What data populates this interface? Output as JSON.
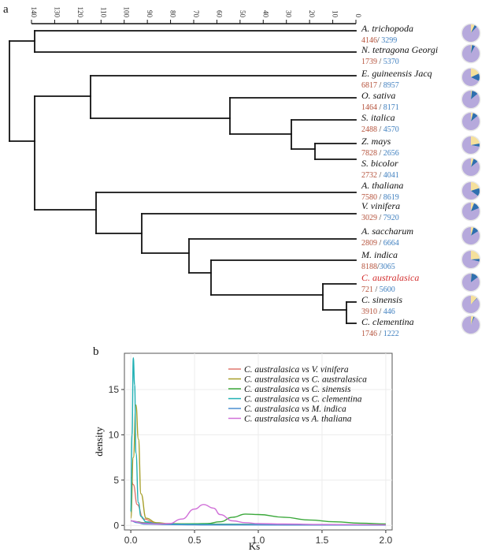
{
  "panel_a": {
    "label": "a",
    "scale_ticks": [
      "140",
      "130",
      "120",
      "110",
      "100",
      "90",
      "80",
      "70",
      "60",
      "50",
      "40",
      "30",
      "20",
      "10",
      "0"
    ],
    "taxa": [
      {
        "name": "A. trichopoda",
        "a": "4146",
        "sep": "/ ",
        "b": "3299",
        "pie": [
          0.07,
          0.05,
          0.88
        ]
      },
      {
        "name": "N. tetragona Georgi",
        "a": "1739",
        "sep": " / ",
        "b": "5370",
        "pie": [
          0.02,
          0.06,
          0.92
        ]
      },
      {
        "name": "E. guineensis Jacq",
        "a": "6817",
        "sep": " / ",
        "b": "8957",
        "pie": [
          0.18,
          0.14,
          0.68
        ]
      },
      {
        "name": "O. sativa",
        "a": "1464",
        "sep": " / ",
        "b": "8171",
        "pie": [
          0.02,
          0.12,
          0.86
        ]
      },
      {
        "name": "S. italica",
        "a": "2488",
        "sep": " / ",
        "b": "4570",
        "pie": [
          0.04,
          0.1,
          0.86
        ]
      },
      {
        "name": "Z. mays",
        "a": "7828",
        "sep": " / ",
        "b": "2656",
        "pie": [
          0.22,
          0.06,
          0.72
        ]
      },
      {
        "name": "S. bicolor",
        "a": "2732",
        "sep": " / ",
        "b": "4041",
        "pie": [
          0.05,
          0.09,
          0.86
        ]
      },
      {
        "name": "A. thaliana",
        "a": "7580",
        "sep": " / ",
        "b": "8619",
        "pie": [
          0.2,
          0.15,
          0.65
        ]
      },
      {
        "name": "V. vinifera",
        "a": "3029",
        "sep": " / ",
        "b": "7920",
        "pie": [
          0.06,
          0.13,
          0.81
        ]
      },
      {
        "name": "A. saccharum",
        "a": "2809",
        "sep": " / ",
        "b": "6664",
        "pie": [
          0.05,
          0.11,
          0.84
        ]
      },
      {
        "name": "M. indica",
        "a": "8188",
        "sep": "/",
        "b": "3065",
        "pie": [
          0.24,
          0.05,
          0.71
        ]
      },
      {
        "name": "C. australasica",
        "a": "721",
        "sep": " / ",
        "b": "5600",
        "pie": [
          0.01,
          0.14,
          0.85
        ],
        "highlight": true
      },
      {
        "name": "C. sinensis",
        "a": "3910",
        "sep": " / ",
        "b": "446",
        "pie": [
          0.12,
          0.01,
          0.87
        ]
      },
      {
        "name": "C. clementina",
        "a": "1746",
        "sep": " / ",
        "b": "1222",
        "pie": [
          0.05,
          0.02,
          0.93
        ]
      }
    ]
  },
  "panel_b": {
    "label": "b",
    "chart_data": {
      "type": "line",
      "title": "",
      "xlabel": "Ks",
      "ylabel": "density",
      "xlim": [
        -0.05,
        2.05
      ],
      "ylim": [
        -0.5,
        19
      ],
      "xticks": [
        "0.0",
        "0.5",
        "1.0",
        "1.5",
        "2.0"
      ],
      "yticks": [
        "0",
        "5",
        "10",
        "15"
      ],
      "series": [
        {
          "name": "C. australasica vs V. vinifera",
          "color": "#e0776f",
          "x": [
            0.0,
            0.02,
            0.05,
            0.1,
            0.2,
            0.3,
            0.5,
            0.8,
            1.0,
            1.5,
            2.0
          ],
          "y": [
            5.3,
            4.5,
            2.3,
            0.7,
            0.25,
            0.15,
            0.1,
            0.1,
            0.08,
            0.06,
            0.04
          ]
        },
        {
          "name": "C. australasica vs C. australasica",
          "color": "#a79f2a",
          "x": [
            0.0,
            0.02,
            0.04,
            0.06,
            0.08,
            0.12,
            0.2,
            0.3,
            0.5,
            1.0,
            1.5,
            2.0
          ],
          "y": [
            0.8,
            7.5,
            13.3,
            9.5,
            3.5,
            0.8,
            0.3,
            0.2,
            0.15,
            0.12,
            0.08,
            0.05
          ]
        },
        {
          "name": "C. australasica vs C. sinensis",
          "color": "#3aa83a",
          "x": [
            0.0,
            0.05,
            0.1,
            0.2,
            0.4,
            0.6,
            0.7,
            0.8,
            0.9,
            1.0,
            1.2,
            1.4,
            1.6,
            1.8,
            2.0
          ],
          "y": [
            0.5,
            0.4,
            0.3,
            0.2,
            0.15,
            0.2,
            0.4,
            0.9,
            1.25,
            1.2,
            0.9,
            0.6,
            0.4,
            0.25,
            0.15
          ]
        },
        {
          "name": "C. australasica vs C. clementina",
          "color": "#21b0b4",
          "x": [
            0.0,
            0.01,
            0.02,
            0.03,
            0.04,
            0.06,
            0.08,
            0.12,
            0.2,
            0.3,
            0.5,
            1.0,
            1.5,
            2.0
          ],
          "y": [
            1.5,
            10.0,
            18.5,
            15.5,
            8.0,
            2.5,
            1.0,
            0.4,
            0.2,
            0.15,
            0.12,
            0.1,
            0.08,
            0.05
          ]
        },
        {
          "name": "C. australasica vs M. indica",
          "color": "#4a8fd0",
          "x": [
            0.0,
            0.05,
            0.1,
            0.3,
            0.5,
            0.8,
            1.0,
            1.5,
            2.0
          ],
          "y": [
            0.5,
            0.3,
            0.15,
            0.08,
            0.06,
            0.05,
            0.05,
            0.04,
            0.03
          ]
        },
        {
          "name": "C. australasica vs A. thaliana",
          "color": "#d070d8",
          "x": [
            0.0,
            0.1,
            0.2,
            0.3,
            0.4,
            0.5,
            0.57,
            0.65,
            0.7,
            0.8,
            0.9,
            1.0,
            1.2,
            1.5,
            2.0
          ],
          "y": [
            0.5,
            0.25,
            0.15,
            0.2,
            0.7,
            1.8,
            2.3,
            1.9,
            1.2,
            0.5,
            0.3,
            0.2,
            0.15,
            0.1,
            0.06
          ]
        }
      ],
      "legend": "top-right"
    }
  },
  "colors": {
    "pie_slice_1": "#f5e09b",
    "pie_slice_2": "#2f6faf",
    "pie_slice_3": "#b6a9dc",
    "highlight": "#d32f2f"
  }
}
